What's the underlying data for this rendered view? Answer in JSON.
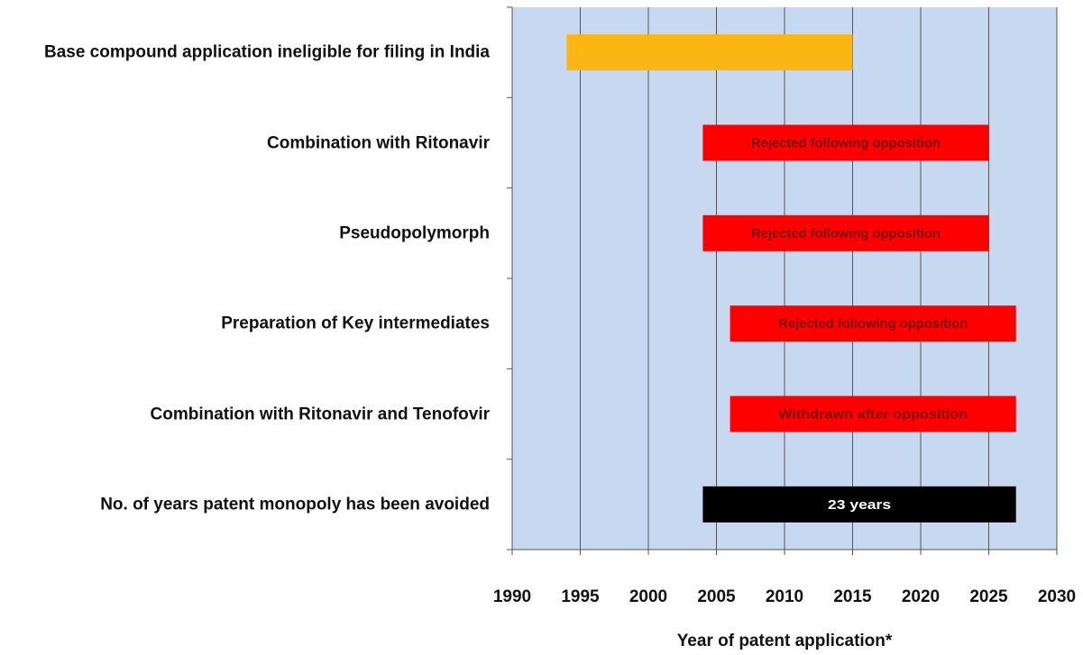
{
  "chart_data": {
    "type": "floating-bar",
    "categories": [
      "Base compound application ineligible for filing in India",
      "Combination with Ritonavir",
      "Pseudopolymorph",
      "Preparation of Key intermediates",
      "Combination with Ritonavir and Tenofovir",
      "No. of years patent monopoly has been avoided"
    ],
    "starts": [
      1994,
      2004,
      2004,
      2006,
      2006,
      2004
    ],
    "ends": [
      2015,
      2025,
      2025,
      2027,
      2027,
      2027
    ],
    "colors": [
      "#fbb614",
      "#ff0000",
      "#ff0000",
      "#ff0000",
      "#ff0000",
      "#000000"
    ],
    "bar_labels": [
      null,
      "Rejected following opposition",
      "Rejected following opposition",
      "Rejected following opposition",
      "Withdrawn after opposition",
      "23 years"
    ],
    "bar_label_colors": [
      null,
      "#7a0000",
      "#7a0000",
      "#7a0000",
      "#7a0000",
      "#ffffff"
    ],
    "xlim": [
      1990,
      2030
    ],
    "xticks": [
      1990,
      1995,
      2000,
      2005,
      2010,
      2015,
      2020,
      2025,
      2030
    ],
    "x_label": "Year of  patent application*",
    "grid": true,
    "plot_background": "#c6d9f0"
  }
}
